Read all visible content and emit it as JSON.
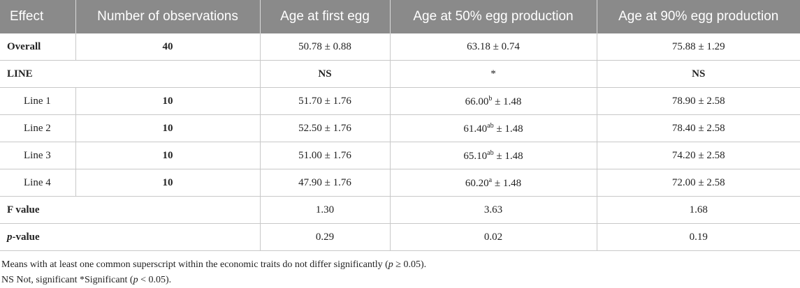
{
  "table": {
    "headers": [
      "Effect",
      "Number of observations",
      "Age at first egg",
      "Age at 50% egg production",
      "Age at 90% egg production"
    ],
    "overall": {
      "effect": "Overall",
      "n": "40",
      "first": "50.78 ± 0.88",
      "fifty": "63.18 ± 0.74",
      "ninety": "75.88 ± 1.29"
    },
    "line_section": {
      "label": "LINE",
      "first": "NS",
      "fifty": "*",
      "ninety": "NS"
    },
    "lines": [
      {
        "effect": "Line 1",
        "n": "10",
        "first": "51.70 ± 1.76",
        "fifty_val": "66.00",
        "fifty_sup": "b",
        "fifty_rest": " ± 1.48",
        "ninety": "78.90 ± 2.58"
      },
      {
        "effect": "Line 2",
        "n": "10",
        "first": "52.50 ± 1.76",
        "fifty_val": "61.40",
        "fifty_sup": "ab",
        "fifty_rest": " ± 1.48",
        "ninety": "78.40 ± 2.58"
      },
      {
        "effect": "Line 3",
        "n": "10",
        "first": "51.00 ± 1.76",
        "fifty_val": "65.10",
        "fifty_sup": "ab",
        "fifty_rest": " ± 1.48",
        "ninety": "74.20 ± 2.58"
      },
      {
        "effect": "Line 4",
        "n": "10",
        "first": "47.90 ± 1.76",
        "fifty_val": "60.20",
        "fifty_sup": "a",
        "fifty_rest": " ± 1.48",
        "ninety": "72.00 ± 2.58"
      }
    ],
    "f_value": {
      "label": "F value",
      "first": "1.30",
      "fifty": "3.63",
      "ninety": "1.68"
    },
    "p_value": {
      "label_italic": "p",
      "label_rest": "-value",
      "first": "0.29",
      "fifty": "0.02",
      "ninety": "0.19"
    }
  },
  "notes": {
    "line1_a": "Means with at least one common superscript within the economic traits do not differ significantly (",
    "line1_p": "p",
    "line1_b": " ≥ 0.05).",
    "line2_a": "NS Not, significant *Significant (",
    "line2_p": "p",
    "line2_b": " < 0.05)."
  }
}
